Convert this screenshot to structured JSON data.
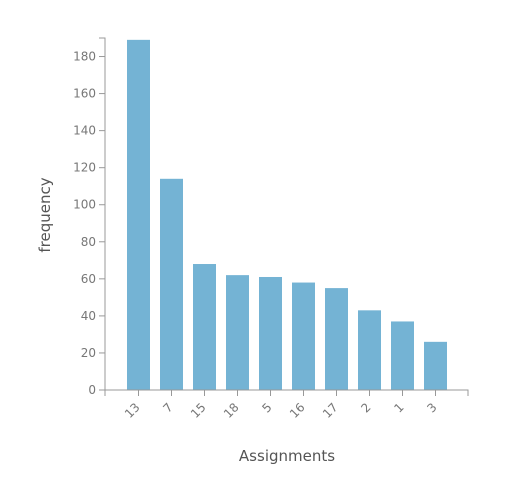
{
  "chart_data": {
    "type": "bar",
    "title": "",
    "xlabel": "Assignments",
    "ylabel": "frequency",
    "categories": [
      "13",
      "7",
      "15",
      "18",
      "5",
      "16",
      "17",
      "2",
      "1",
      "3"
    ],
    "values": [
      189,
      114,
      68,
      62,
      61,
      58,
      55,
      43,
      37,
      26
    ],
    "ylim": [
      0,
      190
    ],
    "yticks": [
      0,
      20,
      40,
      60,
      80,
      100,
      120,
      140,
      160,
      180
    ],
    "grid": false,
    "bar_color": "#74b3d4",
    "axis_color": "#999999"
  }
}
